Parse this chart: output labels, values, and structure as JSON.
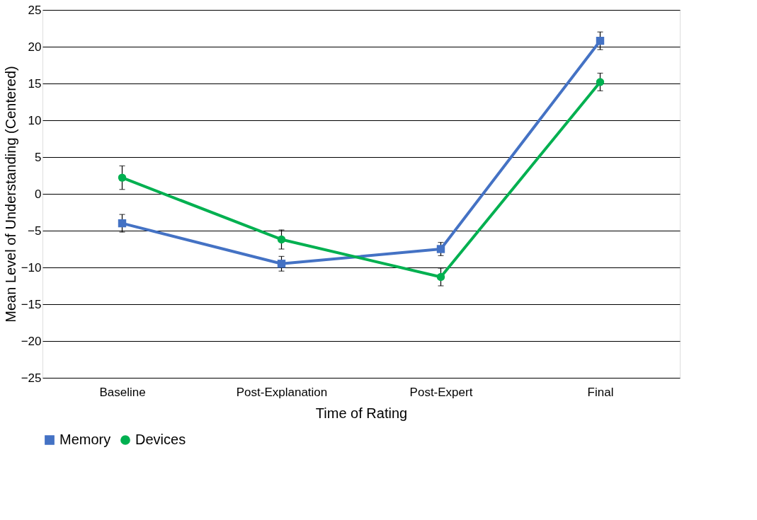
{
  "chart_data": {
    "type": "line",
    "xlabel": "Time of Rating",
    "ylabel": "Mean Level of Understanding (Centered)",
    "categories": [
      "Baseline",
      "Post-Explanation",
      "Post-Expert",
      "Final"
    ],
    "series": [
      {
        "name": "Memory",
        "color": "#4472c4",
        "marker": "square",
        "values": [
          -4,
          -9.5,
          -7.5,
          20.8
        ],
        "errors": [
          1.2,
          1,
          0.9,
          1.2
        ]
      },
      {
        "name": "Devices",
        "color": "#00b050",
        "marker": "circle",
        "values": [
          2.2,
          -6.2,
          -11.3,
          15.2
        ],
        "errors": [
          1.6,
          1.3,
          1.2,
          1.2
        ]
      }
    ],
    "ylim": [
      -25,
      25
    ],
    "yticks": [
      -25,
      -20,
      -15,
      -10,
      -5,
      0,
      5,
      10,
      15,
      20,
      25
    ],
    "grid": "y",
    "legend": "bottom",
    "line_style": "solid"
  }
}
